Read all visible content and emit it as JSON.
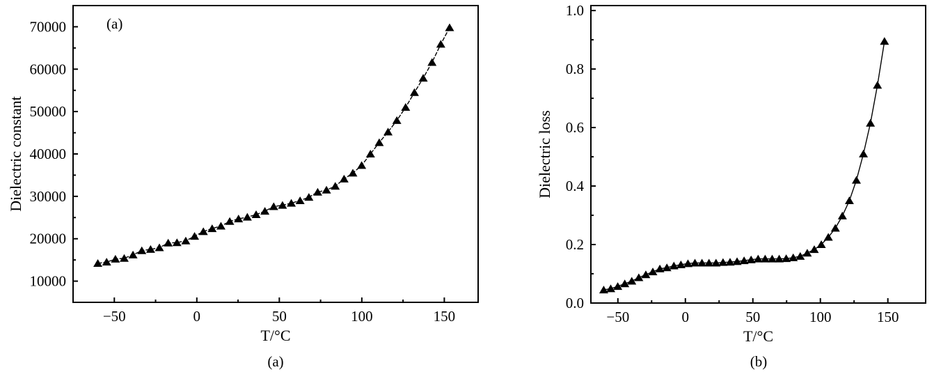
{
  "chart_data": [
    {
      "type": "line",
      "panel_label": "(a)",
      "caption": "(a)",
      "title": "",
      "xlabel": "T/°C",
      "ylabel": "Dielectric constant",
      "xlim": [
        -75,
        170.5
      ],
      "ylim": [
        5000,
        75000
      ],
      "xticks": [
        -50,
        0,
        50,
        100,
        150
      ],
      "xtick_labels": [
        "−50",
        "0",
        "50",
        "100",
        "150"
      ],
      "yticks": [
        10000,
        20000,
        30000,
        40000,
        50000,
        60000,
        70000
      ],
      "ytick_labels": [
        "10000",
        "20000",
        "30000",
        "40000",
        "50000",
        "60000",
        "70000"
      ],
      "marker": "triangle",
      "x_start": -60,
      "x_step": 5.33,
      "values": [
        14200,
        14500,
        15200,
        15400,
        16200,
        17200,
        17500,
        17900,
        19000,
        19100,
        19500,
        20600,
        21700,
        22400,
        23000,
        24100,
        24700,
        25100,
        25700,
        26500,
        27600,
        27900,
        28400,
        29000,
        29800,
        31000,
        31500,
        32400,
        34100,
        35500,
        37300,
        40000,
        42700,
        45200,
        47900,
        51000,
        54500,
        57900,
        61600,
        65900,
        69800
      ]
    },
    {
      "type": "line",
      "caption": "(b)",
      "title": "",
      "xlabel": "T/°C",
      "ylabel": "Dielectric loss",
      "xlim": [
        -70,
        178
      ],
      "ylim": [
        0,
        1.017
      ],
      "xticks": [
        -50,
        0,
        50,
        100,
        150
      ],
      "xtick_labels": [
        "−50",
        "0",
        "50",
        "100",
        "150"
      ],
      "yticks": [
        0,
        0.2,
        0.4,
        0.6,
        0.8,
        1.0
      ],
      "ytick_labels": [
        "0.0",
        "0.2",
        "0.4",
        "0.6",
        "0.8",
        "1.0"
      ],
      "marker": "triangle",
      "x_start": -60.5,
      "x_step": 5.2,
      "values": [
        0.045,
        0.049,
        0.057,
        0.066,
        0.075,
        0.087,
        0.097,
        0.107,
        0.117,
        0.121,
        0.127,
        0.131,
        0.135,
        0.137,
        0.137,
        0.137,
        0.137,
        0.139,
        0.14,
        0.142,
        0.145,
        0.148,
        0.151,
        0.151,
        0.151,
        0.151,
        0.152,
        0.155,
        0.16,
        0.171,
        0.183,
        0.2,
        0.225,
        0.256,
        0.298,
        0.35,
        0.42,
        0.51,
        0.615,
        0.745,
        0.895
      ]
    }
  ]
}
